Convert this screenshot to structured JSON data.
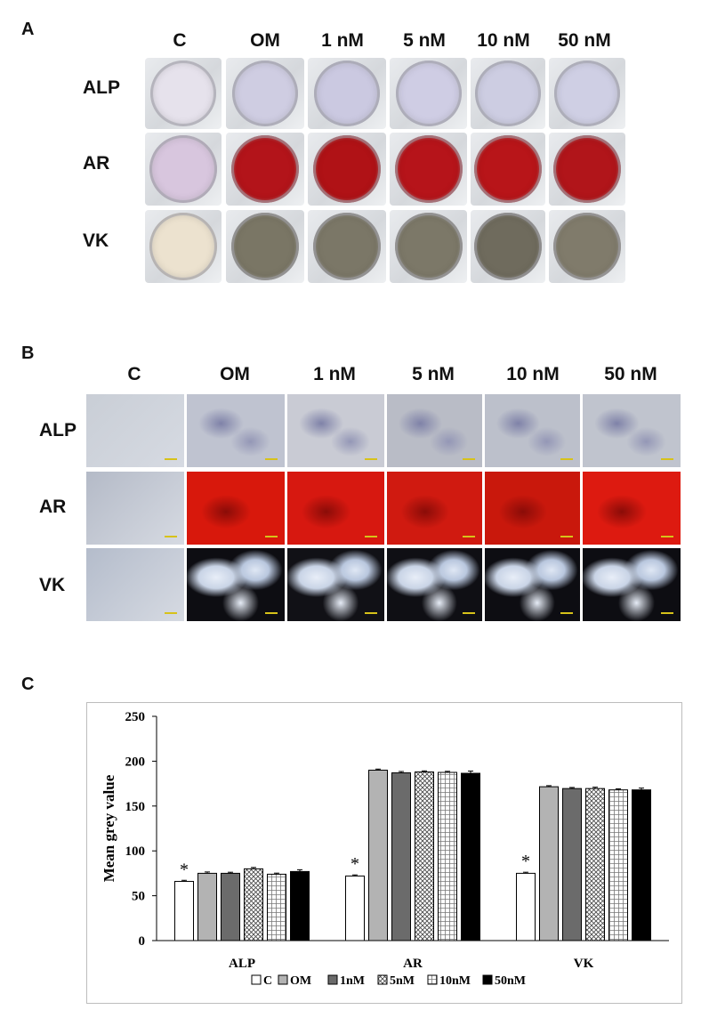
{
  "panels": {
    "a": "A",
    "b": "B",
    "c": "C"
  },
  "columns": [
    "C",
    "OM",
    "1 nM",
    "5 nM",
    "10 nM",
    "50 nM"
  ],
  "rows": [
    "ALP",
    "AR",
    "VK"
  ],
  "wells": {
    "ALP": [
      "#e6e2ec",
      "#cfcde2",
      "#cbc9e1",
      "#cfcde4",
      "#cdcde2",
      "#cfcfe4"
    ],
    "AR": [
      "#d8c6de",
      "#b3141a",
      "#b01216",
      "#b6141a",
      "#b81519",
      "#b1151a"
    ],
    "VK": [
      "#ece2cf",
      "#7a7665",
      "#7b7767",
      "#7c7868",
      "#6f6b5d",
      "#807b6b"
    ]
  },
  "micro": {
    "ALP": [
      "#c9ced6",
      "#bfc3d0",
      "#c9cbd4",
      "#b9bcc6",
      "#bcc0cb",
      "#c0c4ce"
    ],
    "AR": [
      "#b4bac7",
      "#d8180c",
      "#d71810",
      "#d01a10",
      "#c9180c",
      "#dd1a10"
    ],
    "VK": [
      "#b4bccb",
      "#0d0d12",
      "#111116",
      "#0f0f14",
      "#0d0d12",
      "#0d0d12"
    ]
  },
  "chart_data": {
    "type": "bar",
    "categories": [
      "ALP",
      "AR",
      "VK"
    ],
    "ylabel": "Mean grey value",
    "xlabel": "",
    "ylim": [
      0,
      250
    ],
    "yticks": [
      0,
      50,
      100,
      150,
      200,
      250
    ],
    "grid": false,
    "legend_position": "bottom",
    "series": [
      {
        "name": "C",
        "values": [
          66,
          72,
          75
        ],
        "errors": [
          1.2,
          1.2,
          1.2
        ],
        "fill": "white"
      },
      {
        "name": "OM",
        "values": [
          75,
          190,
          171.5
        ],
        "errors": [
          1.5,
          1.2,
          1.2
        ],
        "fill": "lightgrey"
      },
      {
        "name": "1nM",
        "values": [
          75,
          187,
          169.5
        ],
        "errors": [
          1.2,
          1.5,
          1.2
        ],
        "fill": "darkgrey"
      },
      {
        "name": "5nM",
        "values": [
          80,
          188,
          169.5
        ],
        "errors": [
          1.5,
          1.2,
          1.5
        ],
        "fill": "checker"
      },
      {
        "name": "10nM",
        "values": [
          74,
          187.5,
          168
        ],
        "errors": [
          1.2,
          1.2,
          1.2
        ],
        "fill": "grid"
      },
      {
        "name": "50nM",
        "values": [
          77,
          186.5,
          168
        ],
        "errors": [
          2,
          2.5,
          2
        ],
        "fill": "black"
      }
    ],
    "annotations": [
      {
        "category": "ALP",
        "series": "C",
        "text": "*"
      },
      {
        "category": "AR",
        "series": "C",
        "text": "*"
      },
      {
        "category": "VK",
        "series": "C",
        "text": "*"
      }
    ]
  }
}
